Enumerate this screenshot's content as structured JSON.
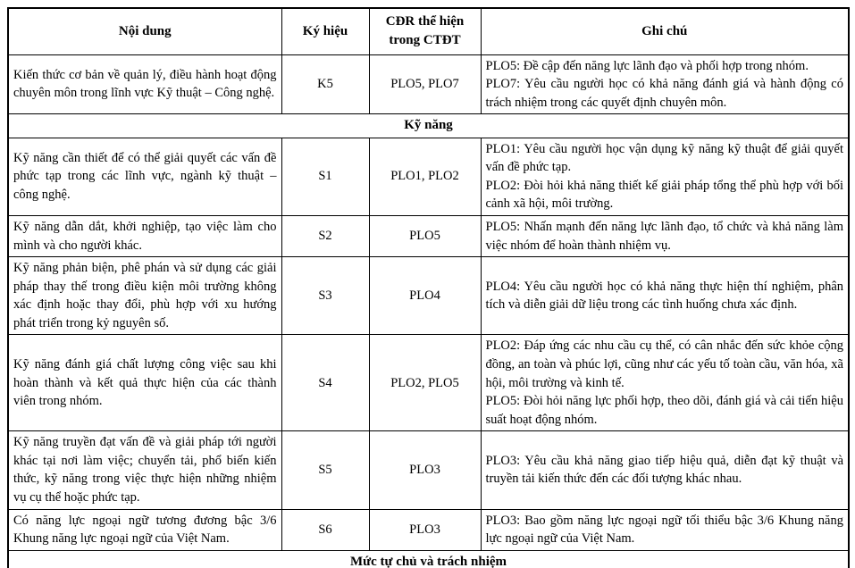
{
  "table": {
    "headers": {
      "content": "Nội dung",
      "symbol": "Ký hiệu",
      "plo": "CĐR thể hiện trong CTĐT",
      "note": "Ghi chú"
    },
    "rows": [
      {
        "type": "data",
        "content": "Kiến thức cơ bản về quản lý, điều hành hoạt động chuyên môn trong lĩnh vực Kỹ thuật – Công nghệ.",
        "symbol": "K5",
        "plo": "PLO5, PLO7",
        "notes": [
          "PLO5: Đề cập đến năng lực lãnh đạo và phối hợp trong nhóm.",
          "PLO7: Yêu cầu người học có khả năng đánh giá và hành động có trách nhiệm trong các quyết định chuyên môn."
        ]
      },
      {
        "type": "section",
        "label": "Kỹ năng"
      },
      {
        "type": "data",
        "content": "Kỹ năng cần thiết để có thể giải quyết các vấn đề phức tạp trong các lĩnh vực, ngành kỹ thuật – công nghệ.",
        "symbol": "S1",
        "plo": "PLO1, PLO2",
        "notes": [
          "PLO1: Yêu cầu người học vận dụng kỹ năng kỹ thuật để giải quyết vấn đề phức tạp.",
          "PLO2: Đòi hỏi khả năng thiết kế giải pháp tổng thể phù hợp với bối cảnh xã hội, môi trường."
        ]
      },
      {
        "type": "data",
        "content": "Kỹ năng dẫn dắt, khởi nghiệp, tạo việc làm cho mình và cho người khác.",
        "symbol": "S2",
        "plo": "PLO5",
        "notes": [
          "PLO5: Nhấn mạnh đến năng lực lãnh đạo, tổ chức và khả năng làm việc nhóm để hoàn thành nhiệm vụ."
        ]
      },
      {
        "type": "data",
        "content": "Kỹ năng phản biện, phê phán và sử dụng các giải pháp thay thế trong điều kiện môi trường không xác định hoặc thay đổi, phù hợp với xu hướng phát triển trong kỷ nguyên số.",
        "symbol": "S3",
        "plo": "PLO4",
        "notes": [
          "PLO4: Yêu cầu người học có khả năng thực hiện thí nghiệm, phân tích và diễn giải dữ liệu trong các tình huống chưa xác định."
        ]
      },
      {
        "type": "data",
        "content": "Kỹ năng đánh giá chất lượng công việc sau khi hoàn thành và kết quả thực hiện của các thành viên trong nhóm.",
        "symbol": "S4",
        "plo": "PLO2, PLO5",
        "notes": [
          "PLO2: Đáp ứng các nhu cầu cụ thể, có cân nhắc đến sức khỏe cộng đồng, an toàn và phúc lợi, cũng như các yếu tố toàn cầu, văn hóa, xã hội, môi trường và kinh tế.",
          "PLO5: Đòi hỏi năng lực phối hợp, theo dõi, đánh giá và cải tiến hiệu suất hoạt động nhóm."
        ]
      },
      {
        "type": "data",
        "content": "Kỹ năng truyền đạt vấn đề và giải pháp tới người khác tại nơi làm việc; chuyển tải, phổ biến kiến thức, kỹ năng trong việc thực hiện những nhiệm vụ cụ thể hoặc phức tạp.",
        "symbol": "S5",
        "plo": "PLO3",
        "notes": [
          "PLO3: Yêu cầu khả năng giao tiếp hiệu quả, diễn đạt kỹ thuật và truyền tải kiến thức đến các đối tượng khác nhau."
        ]
      },
      {
        "type": "data",
        "content": "Có năng lực ngoại ngữ tương đương bậc 3/6 Khung năng lực ngoại ngữ của Việt Nam.",
        "symbol": "S6",
        "plo": "PLO3",
        "notes": [
          "PLO3: Bao gồm năng lực ngoại ngữ tối thiểu bậc 3/6 Khung năng lực ngoại ngữ của Việt Nam."
        ]
      },
      {
        "type": "section",
        "label": "Mức tự chủ và trách nhiệm"
      }
    ]
  }
}
